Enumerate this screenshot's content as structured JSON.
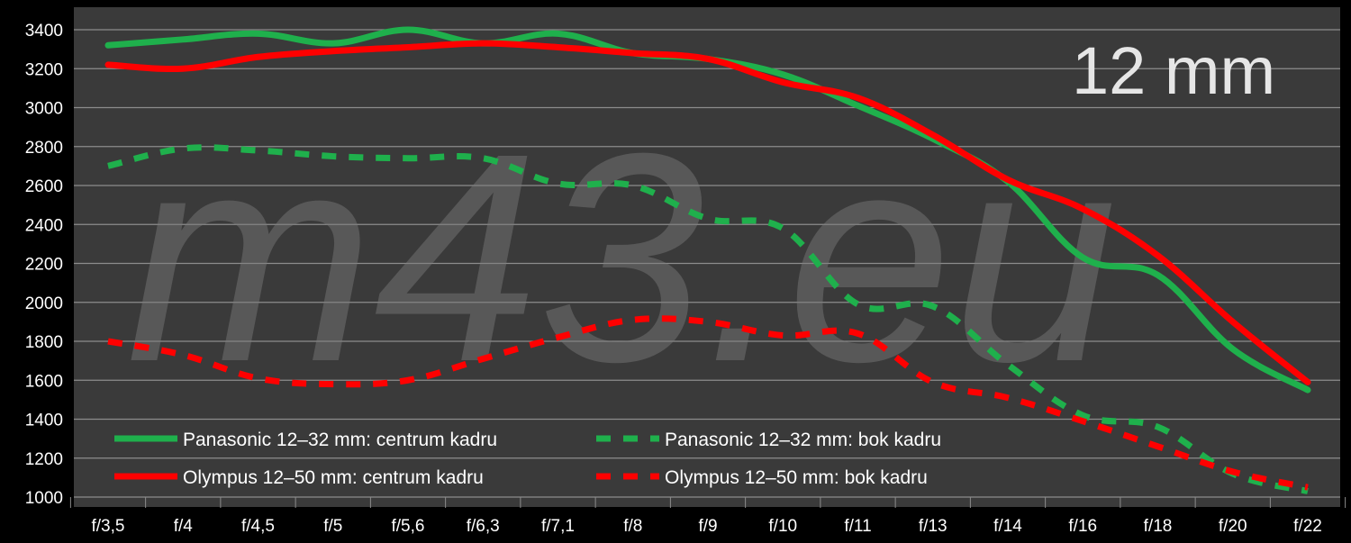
{
  "chart_data": {
    "type": "line",
    "title": "12 mm",
    "watermark": "m43.eu",
    "xlabel": "",
    "ylabel": "",
    "categories": [
      "f/3,5",
      "f/4",
      "f/4,5",
      "f/5",
      "f/5,6",
      "f/6,3",
      "f/7,1",
      "f/8",
      "f/9",
      "f/10",
      "f/11",
      "f/13",
      "f/14",
      "f/16",
      "f/18",
      "f/20",
      "f/22"
    ],
    "ylim": [
      1000,
      3400
    ],
    "yticks": [
      1000,
      1200,
      1400,
      1600,
      1800,
      2000,
      2200,
      2400,
      2600,
      2800,
      3000,
      3200,
      3400
    ],
    "grid": true,
    "legend_position": "bottom-left",
    "background": "#3a3a3a",
    "series": [
      {
        "name": "Panasonic 12–32 mm: centrum kadru",
        "color": "#1fb04c",
        "style": "solid",
        "values": [
          3320,
          3350,
          3380,
          3330,
          3400,
          3330,
          3380,
          3280,
          3250,
          3170,
          3010,
          2840,
          2620,
          2230,
          2140,
          1760,
          1550
        ]
      },
      {
        "name": "Panasonic 12–32 mm: bok kadru",
        "color": "#1fb04c",
        "style": "dashed",
        "values": [
          2700,
          2790,
          2780,
          2750,
          2740,
          2740,
          2610,
          2600,
          2430,
          2380,
          1990,
          1980,
          1680,
          1420,
          1360,
          1120,
          1030
        ]
      },
      {
        "name": "Olympus 12–50 mm: centrum kadru",
        "color": "#ff0000",
        "style": "solid",
        "values": [
          3220,
          3200,
          3260,
          3290,
          3310,
          3330,
          3310,
          3280,
          3250,
          3130,
          3050,
          2860,
          2630,
          2480,
          2240,
          1900,
          1590
        ]
      },
      {
        "name": "Olympus 12–50 mm: bok kadru",
        "color": "#ff0000",
        "style": "dashed",
        "values": [
          1800,
          1730,
          1610,
          1580,
          1600,
          1710,
          1820,
          1910,
          1900,
          1830,
          1840,
          1590,
          1510,
          1390,
          1260,
          1130,
          1050
        ]
      }
    ]
  }
}
